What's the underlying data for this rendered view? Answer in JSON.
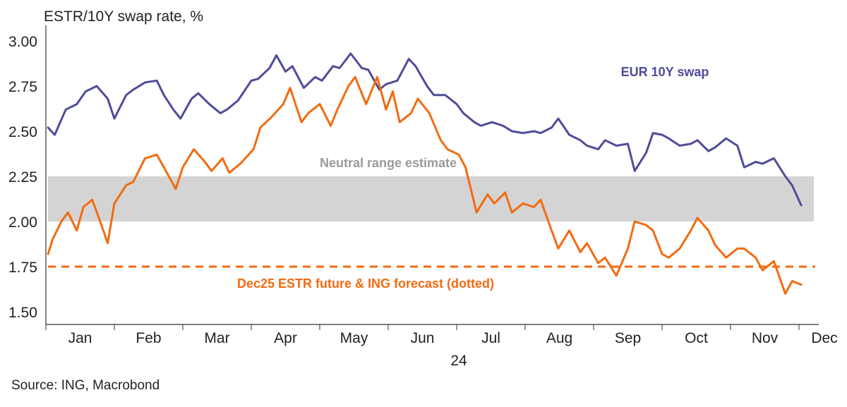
{
  "chart_data": {
    "type": "line",
    "title": "ESTR/10Y swap rate, %",
    "source": "Source: ING, Macrobond",
    "year_label": "24",
    "y_ticks": [
      "3.00",
      "2.75",
      "2.50",
      "2.25",
      "2.00",
      "1.75",
      "1.50"
    ],
    "ylim": [
      1.45,
      3.05
    ],
    "x_months": [
      "Jan",
      "Feb",
      "Mar",
      "Apr",
      "May",
      "Jun",
      "Jul",
      "Aug",
      "Sep",
      "Oct",
      "Nov",
      "Dec"
    ],
    "band": {
      "label": "Neutral range estimate",
      "from": 2.0,
      "to": 2.25,
      "color": "#d4d4d4"
    },
    "forecast": {
      "label": "Dec25 ESTR future & ING forecast (dotted)",
      "value": 1.75,
      "color": "#f26b10"
    },
    "series": [
      {
        "name": "EUR 10Y swap",
        "color": "#4f4c99",
        "x": [
          "2024-01-02",
          "2024-01-05",
          "2024-01-10",
          "2024-01-15",
          "2024-01-19",
          "2024-01-24",
          "2024-01-29",
          "2024-02-01",
          "2024-02-06",
          "2024-02-09",
          "2024-02-14",
          "2024-02-19",
          "2024-02-22",
          "2024-02-26",
          "2024-02-29",
          "2024-03-05",
          "2024-03-08",
          "2024-03-13",
          "2024-03-18",
          "2024-03-21",
          "2024-03-26",
          "2024-04-01",
          "2024-04-04",
          "2024-04-09",
          "2024-04-12",
          "2024-04-16",
          "2024-04-19",
          "2024-04-24",
          "2024-04-29",
          "2024-05-02",
          "2024-05-07",
          "2024-05-10",
          "2024-05-15",
          "2024-05-20",
          "2024-05-23",
          "2024-05-28",
          "2024-05-31",
          "2024-06-05",
          "2024-06-10",
          "2024-06-13",
          "2024-06-18",
          "2024-06-21",
          "2024-06-26",
          "2024-07-01",
          "2024-07-04",
          "2024-07-09",
          "2024-07-12",
          "2024-07-17",
          "2024-07-22",
          "2024-07-26",
          "2024-07-31",
          "2024-08-05",
          "2024-08-08",
          "2024-08-13",
          "2024-08-16",
          "2024-08-21",
          "2024-08-26",
          "2024-08-29",
          "2024-09-03",
          "2024-09-06",
          "2024-09-11",
          "2024-09-16",
          "2024-09-19",
          "2024-09-24",
          "2024-09-27",
          "2024-10-01",
          "2024-10-04",
          "2024-10-09",
          "2024-10-14",
          "2024-10-17",
          "2024-10-22",
          "2024-10-25",
          "2024-10-30",
          "2024-11-04",
          "2024-11-07",
          "2024-11-12",
          "2024-11-15",
          "2024-11-20",
          "2024-11-25",
          "2024-11-28",
          "2024-12-02"
        ],
        "y": [
          2.52,
          2.48,
          2.62,
          2.65,
          2.72,
          2.75,
          2.68,
          2.57,
          2.7,
          2.73,
          2.77,
          2.78,
          2.7,
          2.62,
          2.57,
          2.68,
          2.71,
          2.65,
          2.6,
          2.62,
          2.67,
          2.78,
          2.79,
          2.85,
          2.92,
          2.83,
          2.86,
          2.74,
          2.8,
          2.78,
          2.86,
          2.85,
          2.93,
          2.85,
          2.84,
          2.73,
          2.76,
          2.78,
          2.9,
          2.86,
          2.75,
          2.7,
          2.7,
          2.65,
          2.6,
          2.55,
          2.53,
          2.55,
          2.53,
          2.5,
          2.49,
          2.5,
          2.49,
          2.52,
          2.57,
          2.48,
          2.45,
          2.42,
          2.4,
          2.45,
          2.42,
          2.43,
          2.28,
          2.38,
          2.49,
          2.48,
          2.46,
          2.42,
          2.43,
          2.45,
          2.39,
          2.41,
          2.46,
          2.42,
          2.3,
          2.33,
          2.32,
          2.35,
          2.25,
          2.2,
          2.09
        ]
      },
      {
        "name": "Dec25 ESTR future",
        "color": "#f26b10",
        "x": [
          "2024-01-02",
          "2024-01-04",
          "2024-01-08",
          "2024-01-11",
          "2024-01-15",
          "2024-01-18",
          "2024-01-22",
          "2024-01-25",
          "2024-01-29",
          "2024-02-01",
          "2024-02-06",
          "2024-02-09",
          "2024-02-14",
          "2024-02-19",
          "2024-02-22",
          "2024-02-27",
          "2024-03-01",
          "2024-03-06",
          "2024-03-11",
          "2024-03-14",
          "2024-03-19",
          "2024-03-22",
          "2024-03-27",
          "2024-04-02",
          "2024-04-05",
          "2024-04-10",
          "2024-04-15",
          "2024-04-18",
          "2024-04-23",
          "2024-04-26",
          "2024-05-01",
          "2024-05-06",
          "2024-05-09",
          "2024-05-14",
          "2024-05-17",
          "2024-05-22",
          "2024-05-27",
          "2024-05-31",
          "2024-06-03",
          "2024-06-06",
          "2024-06-11",
          "2024-06-14",
          "2024-06-19",
          "2024-06-24",
          "2024-06-27",
          "2024-07-02",
          "2024-07-05",
          "2024-07-10",
          "2024-07-15",
          "2024-07-18",
          "2024-07-23",
          "2024-07-26",
          "2024-07-31",
          "2024-08-05",
          "2024-08-08",
          "2024-08-13",
          "2024-08-16",
          "2024-08-21",
          "2024-08-26",
          "2024-08-29",
          "2024-09-03",
          "2024-09-06",
          "2024-09-11",
          "2024-09-16",
          "2024-09-19",
          "2024-09-24",
          "2024-09-27",
          "2024-10-01",
          "2024-10-04",
          "2024-10-09",
          "2024-10-14",
          "2024-10-17",
          "2024-10-22",
          "2024-10-25",
          "2024-10-30",
          "2024-11-04",
          "2024-11-07",
          "2024-11-12",
          "2024-11-15",
          "2024-11-20",
          "2024-11-25",
          "2024-11-28",
          "2024-12-02"
        ],
        "y": [
          1.82,
          1.9,
          2.0,
          2.05,
          1.95,
          2.08,
          2.12,
          2.02,
          1.88,
          2.1,
          2.2,
          2.22,
          2.35,
          2.37,
          2.3,
          2.18,
          2.3,
          2.4,
          2.33,
          2.28,
          2.35,
          2.27,
          2.32,
          2.4,
          2.52,
          2.58,
          2.65,
          2.74,
          2.55,
          2.6,
          2.65,
          2.53,
          2.62,
          2.75,
          2.8,
          2.65,
          2.8,
          2.62,
          2.72,
          2.55,
          2.6,
          2.68,
          2.6,
          2.45,
          2.4,
          2.37,
          2.3,
          2.05,
          2.15,
          2.1,
          2.16,
          2.05,
          2.1,
          2.08,
          2.12,
          1.95,
          1.85,
          1.95,
          1.83,
          1.88,
          1.77,
          1.8,
          1.7,
          1.85,
          2.0,
          1.98,
          1.95,
          1.82,
          1.8,
          1.85,
          1.95,
          2.02,
          1.95,
          1.87,
          1.8,
          1.85,
          1.85,
          1.8,
          1.73,
          1.78,
          1.6,
          1.67,
          1.65
        ]
      }
    ]
  }
}
